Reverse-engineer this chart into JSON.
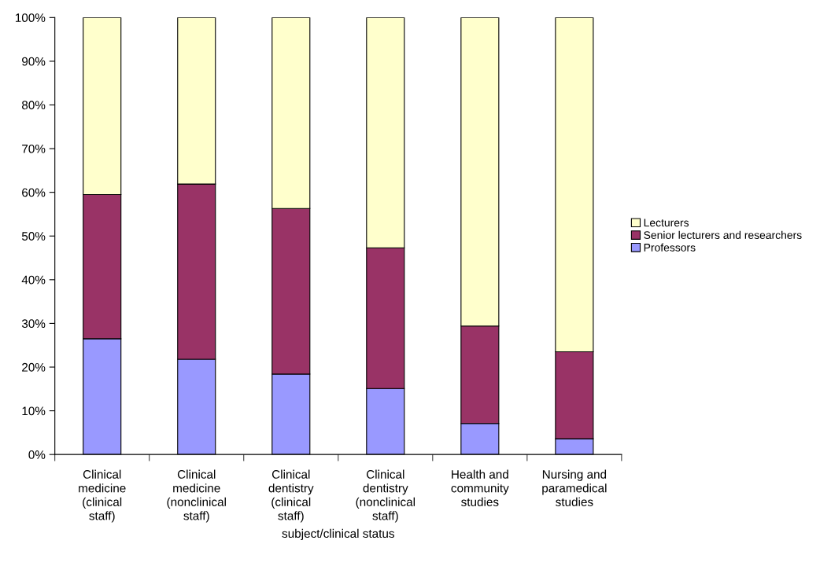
{
  "chart_data": {
    "type": "bar",
    "stacked": true,
    "xlabel": "subject/clinical status",
    "categories": [
      "Clinical\nmedicine\n(clinical\nstaff)",
      "Clinical\nmedicine\n(nonclinical\nstaff)",
      "Clinical\ndentistry\n(clinical\nstaff)",
      "Clinical\ndentistry\n(nonclinical\nstaff)",
      "Health and\ncommunity\nstudies",
      "Nursing and\nparamedical\nstudies"
    ],
    "series": [
      {
        "name": "Professors",
        "color": "#9999ff",
        "values": [
          26.5,
          21.8,
          18.4,
          15.1,
          7.1,
          3.6
        ]
      },
      {
        "name": "Senior lecturers and researchers",
        "color": "#993366",
        "values": [
          33.0,
          40.1,
          37.9,
          32.2,
          22.3,
          19.9
        ]
      },
      {
        "name": "Lecturers",
        "color": "#ffffcc",
        "values": [
          40.5,
          38.1,
          43.7,
          52.7,
          70.6,
          76.5
        ]
      }
    ],
    "ylim": [
      0,
      100
    ],
    "yticks": [
      {
        "value": 0,
        "label": "0%"
      },
      {
        "value": 10,
        "label": "10%"
      },
      {
        "value": 20,
        "label": "20%"
      },
      {
        "value": 30,
        "label": "30%"
      },
      {
        "value": 40,
        "label": "40%"
      },
      {
        "value": 50,
        "label": "50%"
      },
      {
        "value": 60,
        "label": "60%"
      },
      {
        "value": 70,
        "label": "70%"
      },
      {
        "value": 80,
        "label": "80%"
      },
      {
        "value": 90,
        "label": "90%"
      },
      {
        "value": 100,
        "label": "100%"
      }
    ],
    "grid": false,
    "legend": "right"
  }
}
